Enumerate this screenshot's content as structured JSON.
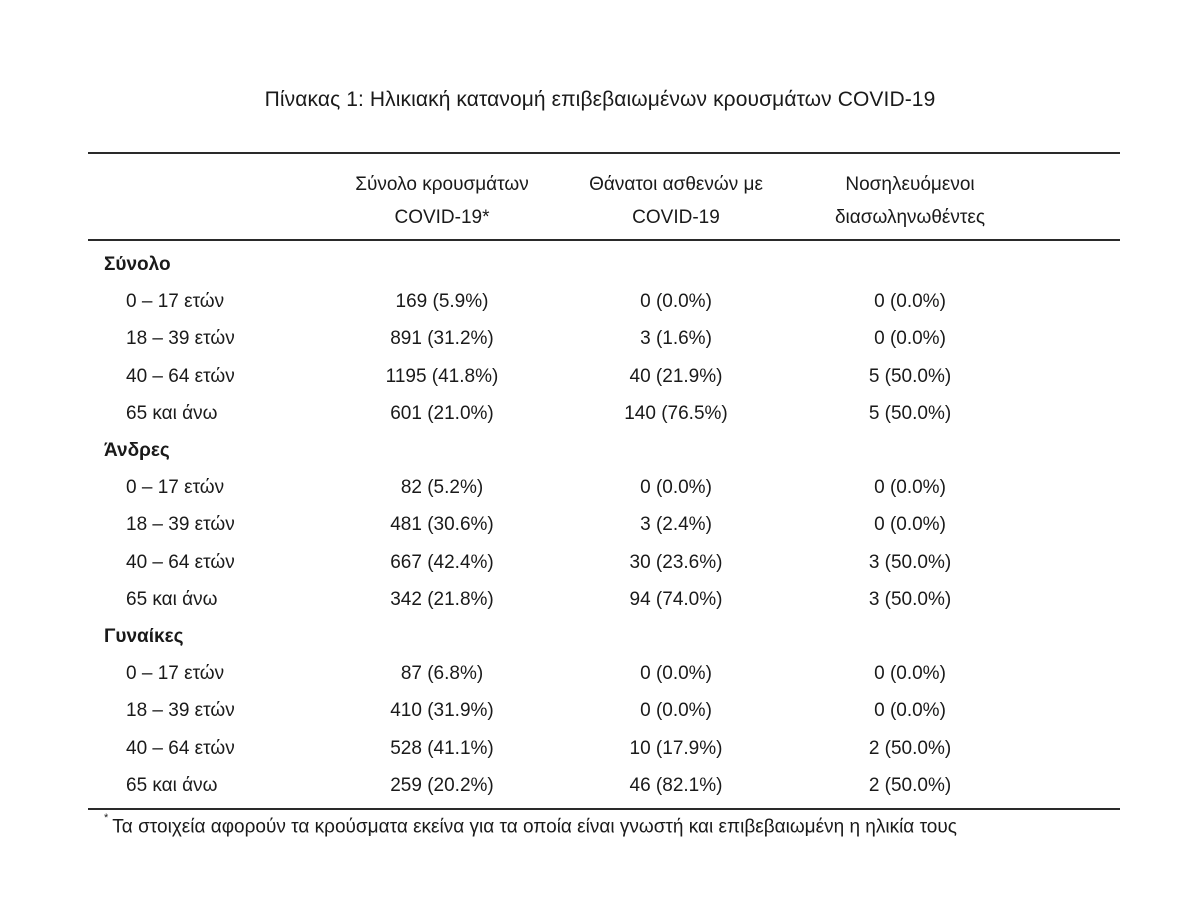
{
  "title": "Πίνακας 1: Ηλικιακή κατανομή επιβεβαιωμένων κρουσμάτων COVID-19",
  "headers": [
    {
      "line1": "Σύνολο κρουσμάτων",
      "line2": "COVID-19*"
    },
    {
      "line1": "Θάνατοι ασθενών με",
      "line2": "COVID-19"
    },
    {
      "line1": "Νοσηλευόμενοι",
      "line2": "διασωληνωθέντες"
    }
  ],
  "groups": [
    {
      "name": "Σύνολο",
      "rows": [
        {
          "age": "0 – 17 ετών",
          "cases": "169 (5.9%)",
          "deaths": "0 (0.0%)",
          "intubated": "0 (0.0%)"
        },
        {
          "age": "18 – 39 ετών",
          "cases": "891 (31.2%)",
          "deaths": "3 (1.6%)",
          "intubated": "0 (0.0%)"
        },
        {
          "age": "40 – 64 ετών",
          "cases": "1195 (41.8%)",
          "deaths": "40 (21.9%)",
          "intubated": "5 (50.0%)"
        },
        {
          "age": "65 και άνω",
          "cases": "601 (21.0%)",
          "deaths": "140 (76.5%)",
          "intubated": "5 (50.0%)"
        }
      ]
    },
    {
      "name": "Άνδρες",
      "rows": [
        {
          "age": "0 – 17 ετών",
          "cases": "82 (5.2%)",
          "deaths": "0 (0.0%)",
          "intubated": "0 (0.0%)"
        },
        {
          "age": "18 – 39 ετών",
          "cases": "481 (30.6%)",
          "deaths": "3 (2.4%)",
          "intubated": "0 (0.0%)"
        },
        {
          "age": "40 – 64 ετών",
          "cases": "667 (42.4%)",
          "deaths": "30 (23.6%)",
          "intubated": "3 (50.0%)"
        },
        {
          "age": "65 και άνω",
          "cases": "342 (21.8%)",
          "deaths": "94 (74.0%)",
          "intubated": "3 (50.0%)"
        }
      ]
    },
    {
      "name": "Γυναίκες",
      "rows": [
        {
          "age": "0 – 17 ετών",
          "cases": "87 (6.8%)",
          "deaths": "0 (0.0%)",
          "intubated": "0 (0.0%)"
        },
        {
          "age": "18 – 39 ετών",
          "cases": "410 (31.9%)",
          "deaths": "0 (0.0%)",
          "intubated": "0 (0.0%)"
        },
        {
          "age": "40 – 64 ετών",
          "cases": "528 (41.1%)",
          "deaths": "10 (17.9%)",
          "intubated": "2 (50.0%)"
        },
        {
          "age": "65 και άνω",
          "cases": "259 (20.2%)",
          "deaths": "46 (82.1%)",
          "intubated": "2 (50.0%)"
        }
      ]
    }
  ],
  "footnote": {
    "marker": "*",
    "text": "Τα στοιχεία αφορούν τα κρούσματα εκείνα για τα οποία είναι γνωστή και επιβεβαιωμένη η ηλικία τους"
  }
}
